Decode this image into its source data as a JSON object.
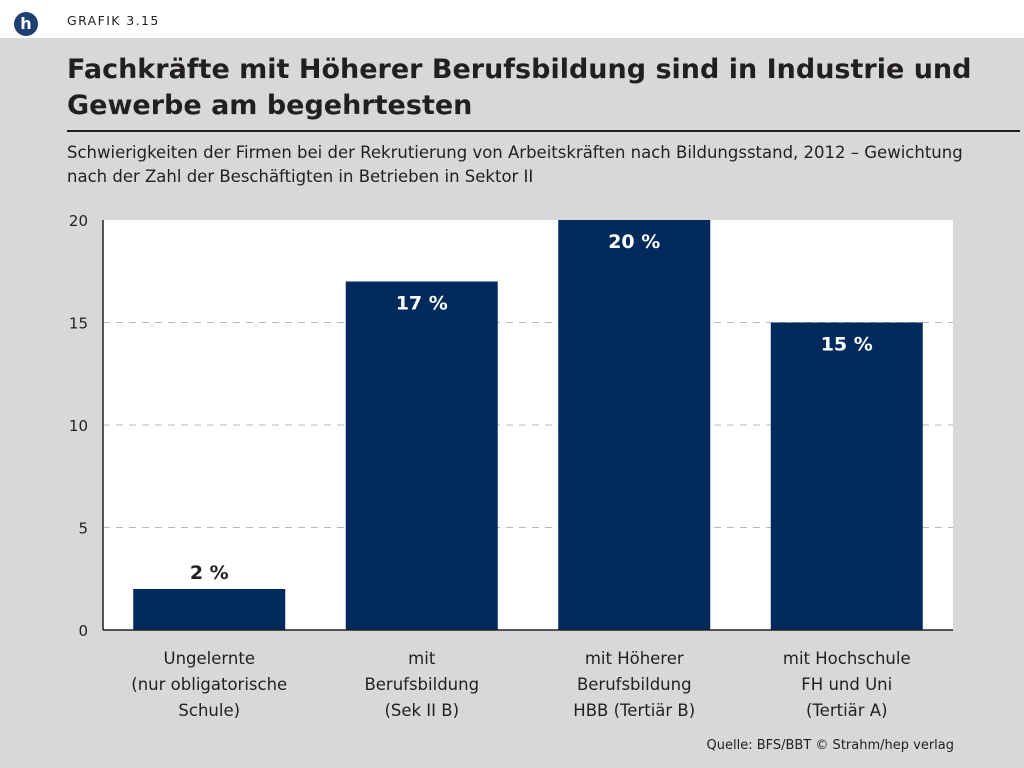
{
  "header": {
    "logo_letter": "h",
    "figure_label": "GRAFIK 3.15"
  },
  "title": "Fachkräfte mit Höherer Berufsbildung sind in Industrie und Gewerbe am begehrtesten",
  "subtitle": "Schwierigkeiten der Firmen bei der Rekrutierung von Arbeitskräften nach Bildungsstand, 2012 – Gewichtung nach der Zahl der Beschäftigten in Betrieben in Sektor II",
  "source": "Quelle: BFS/BBT  © Strahm/hep verlag",
  "colors": {
    "bar": "#002a5c",
    "panel": "#d7d8da",
    "plot_bg": "#ffffff",
    "logo": "#1d3f72",
    "grid": "#b8b8b8"
  },
  "chart_data": {
    "type": "bar",
    "title": "Fachkräfte mit Höherer Berufsbildung sind in Industrie und Gewerbe am begehrtesten",
    "ylim": [
      0,
      20
    ],
    "yticks": [
      0,
      5,
      10,
      15,
      20
    ],
    "xlabel": "",
    "ylabel": "",
    "grid": "horizontal dashed",
    "categories": [
      [
        "Ungelernte",
        "(nur obligatorische",
        "Schule)"
      ],
      [
        "mit",
        "Berufsbildung",
        "(Sek II B)"
      ],
      [
        "mit Höherer",
        "Berufsbildung",
        "HBB (Tertiär B)"
      ],
      [
        "mit Hochschule",
        "FH und Uni",
        "(Tertiär A)"
      ]
    ],
    "values": [
      2,
      17,
      20,
      15
    ],
    "data_labels": [
      "2 %",
      "17 %",
      "20 %",
      "15 %"
    ]
  }
}
